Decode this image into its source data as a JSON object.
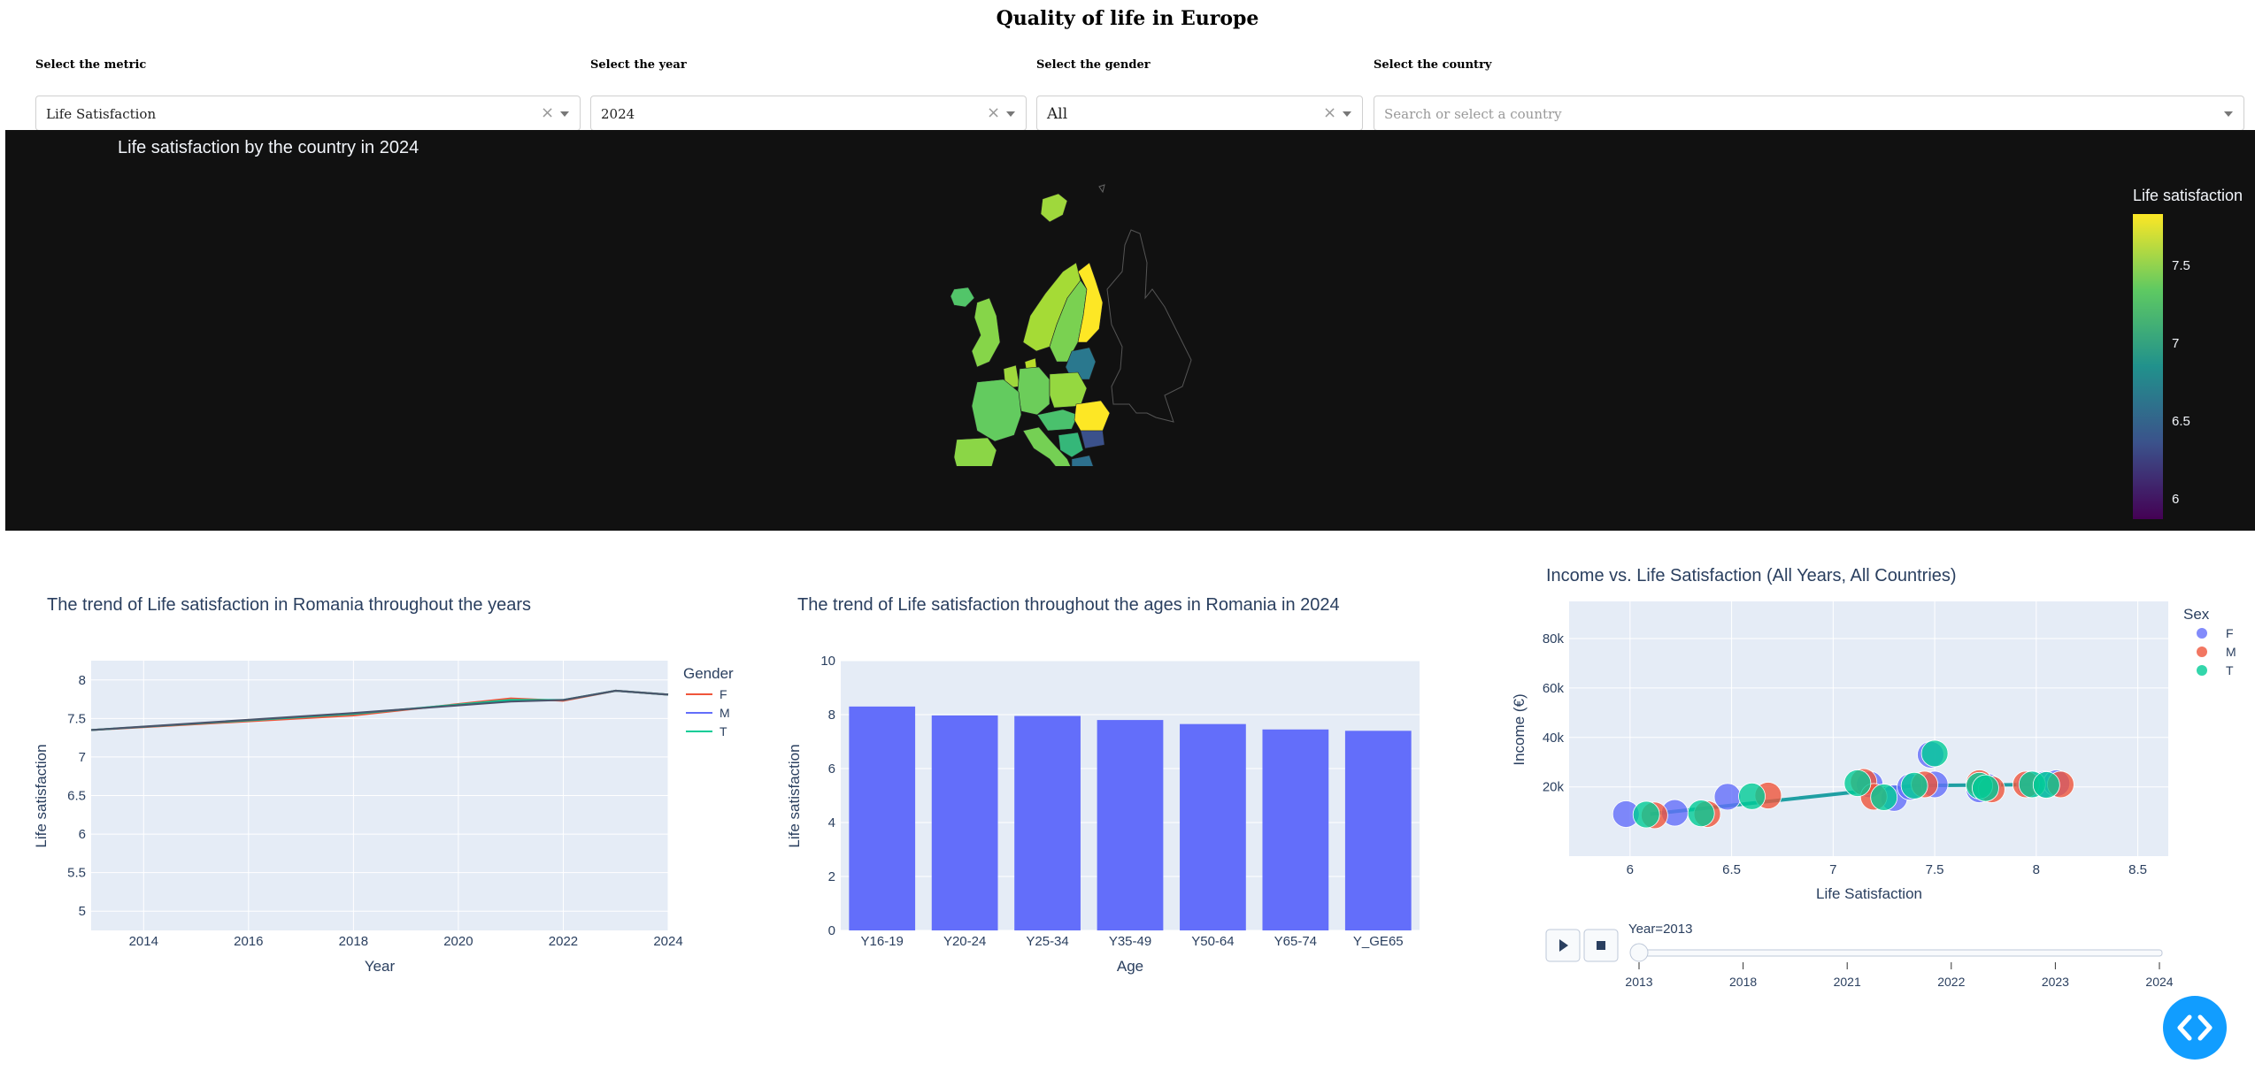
{
  "page": {
    "title": "Quality of life in Europe"
  },
  "filters": {
    "metric": {
      "label": "Select the metric",
      "value": "Life Satisfaction"
    },
    "year": {
      "label": "Select the year",
      "value": "2024"
    },
    "gender": {
      "label": "Select the gender",
      "value": "All"
    },
    "country": {
      "label": "Select the country",
      "placeholder": "Search or select a country"
    },
    "clear_glyph": "×"
  },
  "map": {
    "title": "Life satisfaction by the country in 2024",
    "colorbar": {
      "title": "Life satisfaction",
      "ticks": [
        "7.5",
        "7",
        "6.5",
        "6"
      ]
    },
    "colors": {
      "low": "#440154",
      "high": "#fde725",
      "background": "#111111"
    }
  },
  "chart_data": [
    {
      "type": "line",
      "title": "The trend of Life satisfaction in Romania throughout the years",
      "xlabel": "Year",
      "ylabel": "Life satisfaction",
      "xlim": [
        2013,
        2024
      ],
      "ylim": [
        4.75,
        8.25
      ],
      "xticks": [
        "2014",
        "2016",
        "2018",
        "2020",
        "2022",
        "2024"
      ],
      "yticks": [
        "5",
        "5.5",
        "6",
        "6.5",
        "7",
        "7.5",
        "8"
      ],
      "legend_title": "Gender",
      "x": [
        2013,
        2018,
        2021,
        2022,
        2023,
        2024
      ],
      "series": [
        {
          "name": "F",
          "color": "#ef553b",
          "values": [
            7.35,
            7.54,
            7.76,
            7.73,
            7.86,
            7.81
          ]
        },
        {
          "name": "M",
          "color": "#636efa",
          "values": [
            7.35,
            7.57,
            7.72,
            7.74,
            7.86,
            7.81
          ]
        },
        {
          "name": "T",
          "color": "#00cc96",
          "values": [
            7.35,
            7.56,
            7.74,
            7.74,
            7.86,
            7.81
          ]
        }
      ],
      "series_draw_order": [
        "F",
        "T",
        "M"
      ],
      "overlap_color": "#4a556c"
    },
    {
      "type": "bar",
      "title": "The trend of Life satisfaction throughout the ages in Romania in 2024",
      "xlabel": "Age",
      "ylabel": "Life satisfaction",
      "ylim": [
        0,
        10
      ],
      "yticks": [
        "0",
        "2",
        "4",
        "6",
        "8",
        "10"
      ],
      "categories": [
        "Y16-19",
        "Y20-24",
        "Y25-34",
        "Y35-49",
        "Y50-64",
        "Y65-74",
        "Y_GE65"
      ],
      "values": [
        8.3,
        7.97,
        7.95,
        7.8,
        7.65,
        7.45,
        7.4
      ],
      "color": "#636efa"
    },
    {
      "type": "scatter",
      "title": "Income vs. Life Satisfaction (All Years, All Countries)",
      "xlabel": "Life Satisfaction",
      "ylabel": "Income (€)",
      "xlim": [
        5.7,
        8.65
      ],
      "ylim": [
        -8000,
        95000
      ],
      "xticks": [
        "6",
        "6.5",
        "7",
        "7.5",
        "8",
        "8.5"
      ],
      "yticks": [
        "20k",
        "40k",
        "60k",
        "80k"
      ],
      "legend_title": "Sex",
      "series": [
        {
          "name": "F",
          "color": "#636efa",
          "points": [
            [
              5.98,
              9000
            ],
            [
              6.22,
              9500
            ],
            [
              6.48,
              16000
            ],
            [
              7.18,
              21000
            ],
            [
              7.3,
              15500
            ],
            [
              7.38,
              20000
            ],
            [
              7.48,
              33000
            ],
            [
              7.5,
              21000
            ],
            [
              7.72,
              19000
            ],
            [
              7.76,
              20000
            ],
            [
              7.97,
              21000
            ],
            [
              8.04,
              21000
            ],
            [
              8.1,
              21500
            ]
          ]
        },
        {
          "name": "M",
          "color": "#ef553b",
          "points": [
            [
              6.12,
              8500
            ],
            [
              6.38,
              9000
            ],
            [
              6.68,
              16500
            ],
            [
              7.15,
              22000
            ],
            [
              7.2,
              16000
            ],
            [
              7.45,
              21000
            ],
            [
              7.72,
              21500
            ],
            [
              7.78,
              19000
            ],
            [
              7.95,
              21000
            ],
            [
              8.12,
              21000
            ]
          ]
        },
        {
          "name": "T",
          "color": "#00cc96",
          "points": [
            [
              6.08,
              8800
            ],
            [
              6.35,
              9300
            ],
            [
              6.6,
              16200
            ],
            [
              7.12,
              21500
            ],
            [
              7.25,
              15800
            ],
            [
              7.4,
              20500
            ],
            [
              7.5,
              33500
            ],
            [
              7.72,
              20500
            ],
            [
              7.75,
              19500
            ],
            [
              7.98,
              21000
            ],
            [
              8.05,
              20800
            ]
          ]
        }
      ],
      "trend": {
        "color": "#1f9fa3",
        "points": [
          [
            6.1,
            9000
          ],
          [
            7.4,
            20500
          ],
          [
            8.1,
            21000
          ]
        ]
      },
      "animation": {
        "current_label": "Year=2013",
        "steps": [
          "2013",
          "2018",
          "2021",
          "2022",
          "2023",
          "2024"
        ]
      }
    }
  ]
}
